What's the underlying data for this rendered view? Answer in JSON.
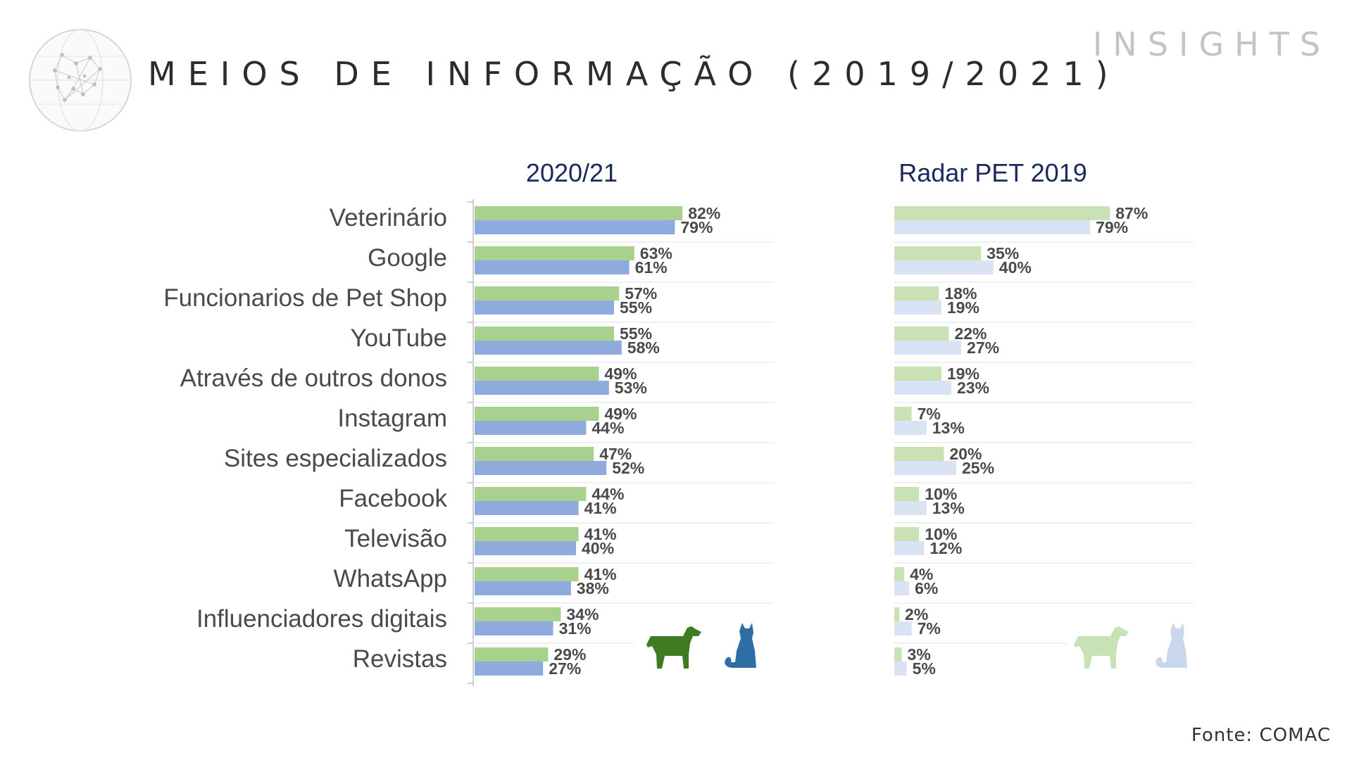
{
  "header": {
    "title": "MEIOS DE INFORMAÇÃO (2019/2021)",
    "brand": "INSIGHTS"
  },
  "footer": {
    "source": "Fonte: COMAC"
  },
  "colors": {
    "green": "#a9d18e",
    "blue": "#8faadc",
    "light_green": "#c8e2b5",
    "light_blue": "#dae3f3",
    "panel_title": "#1a2a5c",
    "label": "#4a4a4a",
    "value": "#4a4a4a",
    "dog_icon": "#3e7b22",
    "cat_icon": "#2f6ea5",
    "dog_icon_faded": "#c8e2b5",
    "cat_icon_faded": "#c9d7ea"
  },
  "icons": [
    "globe-icon",
    "dog-icon",
    "cat-icon"
  ],
  "chart_data": [
    {
      "type": "bar",
      "orientation": "horizontal",
      "title": "2020/21",
      "categories": [
        "Veterinário",
        "Google",
        "Funcionarios de Pet Shop",
        "YouTube",
        "Através de outros donos",
        "Instagram",
        "Sites especializados",
        "Facebook",
        "Televisão",
        "WhatsApp",
        "Influenciadores digitais",
        "Revistas"
      ],
      "series": [
        {
          "values": [
            82,
            63,
            57,
            55,
            49,
            49,
            47,
            44,
            41,
            41,
            34,
            29
          ]
        },
        {
          "values": [
            79,
            61,
            55,
            58,
            53,
            44,
            52,
            41,
            40,
            38,
            31,
            27
          ]
        }
      ],
      "value_suffix": "%",
      "xlim": [
        0,
        100
      ]
    },
    {
      "type": "bar",
      "orientation": "horizontal",
      "title": "Radar PET 2019",
      "categories": [
        "Veterinário",
        "Google",
        "Funcionarios de Pet Shop",
        "YouTube",
        "Através de outros donos",
        "Instagram",
        "Sites especializados",
        "Facebook",
        "Televisão",
        "WhatsApp",
        "Influenciadores digitais",
        "Revistas"
      ],
      "series": [
        {
          "values": [
            87,
            35,
            18,
            22,
            19,
            7,
            20,
            10,
            10,
            4,
            2,
            3
          ]
        },
        {
          "values": [
            79,
            40,
            19,
            27,
            23,
            13,
            25,
            13,
            12,
            6,
            7,
            5
          ]
        }
      ],
      "value_suffix": "%",
      "xlim": [
        0,
        100
      ]
    }
  ]
}
